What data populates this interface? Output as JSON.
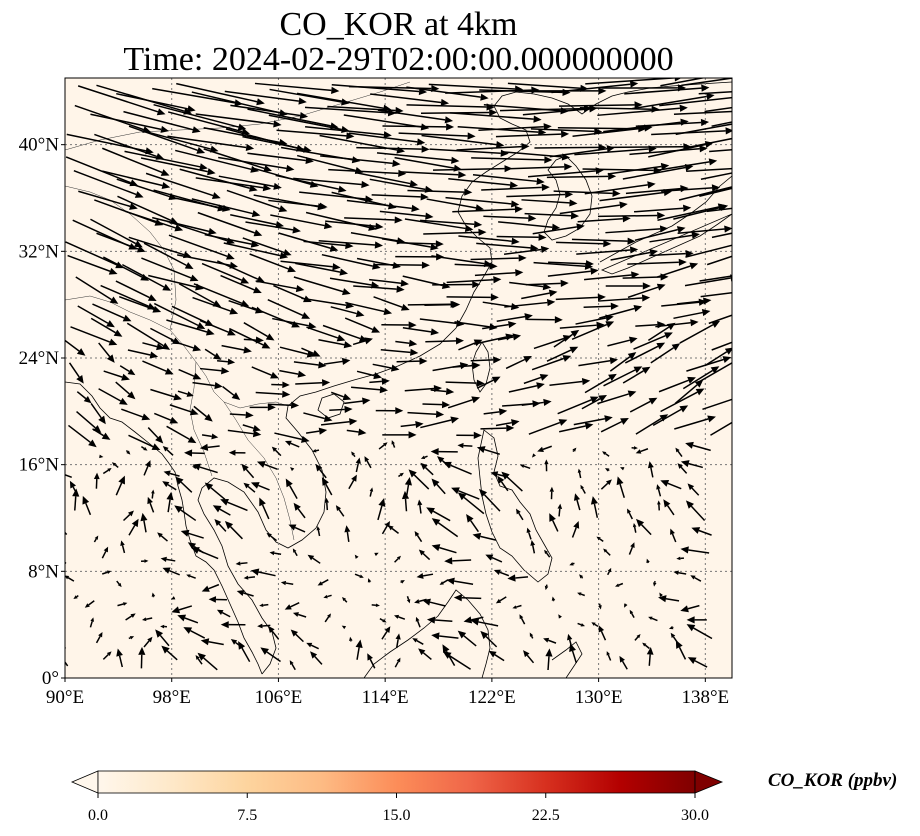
{
  "title": {
    "line1": "CO_KOR at 4km",
    "line2": "Time: 2024-02-29T02:00:00.000000000"
  },
  "map": {
    "lon_range": [
      90,
      140
    ],
    "lat_range": [
      0,
      45
    ],
    "x_ticks": [
      "90°E",
      "98°E",
      "106°E",
      "114°E",
      "122°E",
      "130°E",
      "138°E"
    ],
    "x_tick_values": [
      90,
      98,
      106,
      114,
      122,
      130,
      138
    ],
    "y_ticks": [
      "0°",
      "8°N",
      "16°N",
      "24°N",
      "32°N",
      "40°N"
    ],
    "y_tick_values": [
      0,
      8,
      16,
      24,
      32,
      40
    ],
    "gridlines": true,
    "background_color": "#fff5e9",
    "arrow_color": "#000000"
  },
  "colorbar": {
    "label": "CO_KOR (ppbv)",
    "ticks": [
      "0.0",
      "7.5",
      "15.0",
      "22.5",
      "30.0"
    ],
    "tick_values": [
      0,
      7.5,
      15,
      22.5,
      30
    ],
    "range": [
      0,
      30
    ],
    "extend": "both",
    "colormap": "OrRd",
    "colors": [
      "#fff7ec",
      "#fee8c8",
      "#fdd49e",
      "#fdbb84",
      "#fc8d59",
      "#ef6548",
      "#d7301f",
      "#b30000",
      "#7f0000"
    ]
  }
}
